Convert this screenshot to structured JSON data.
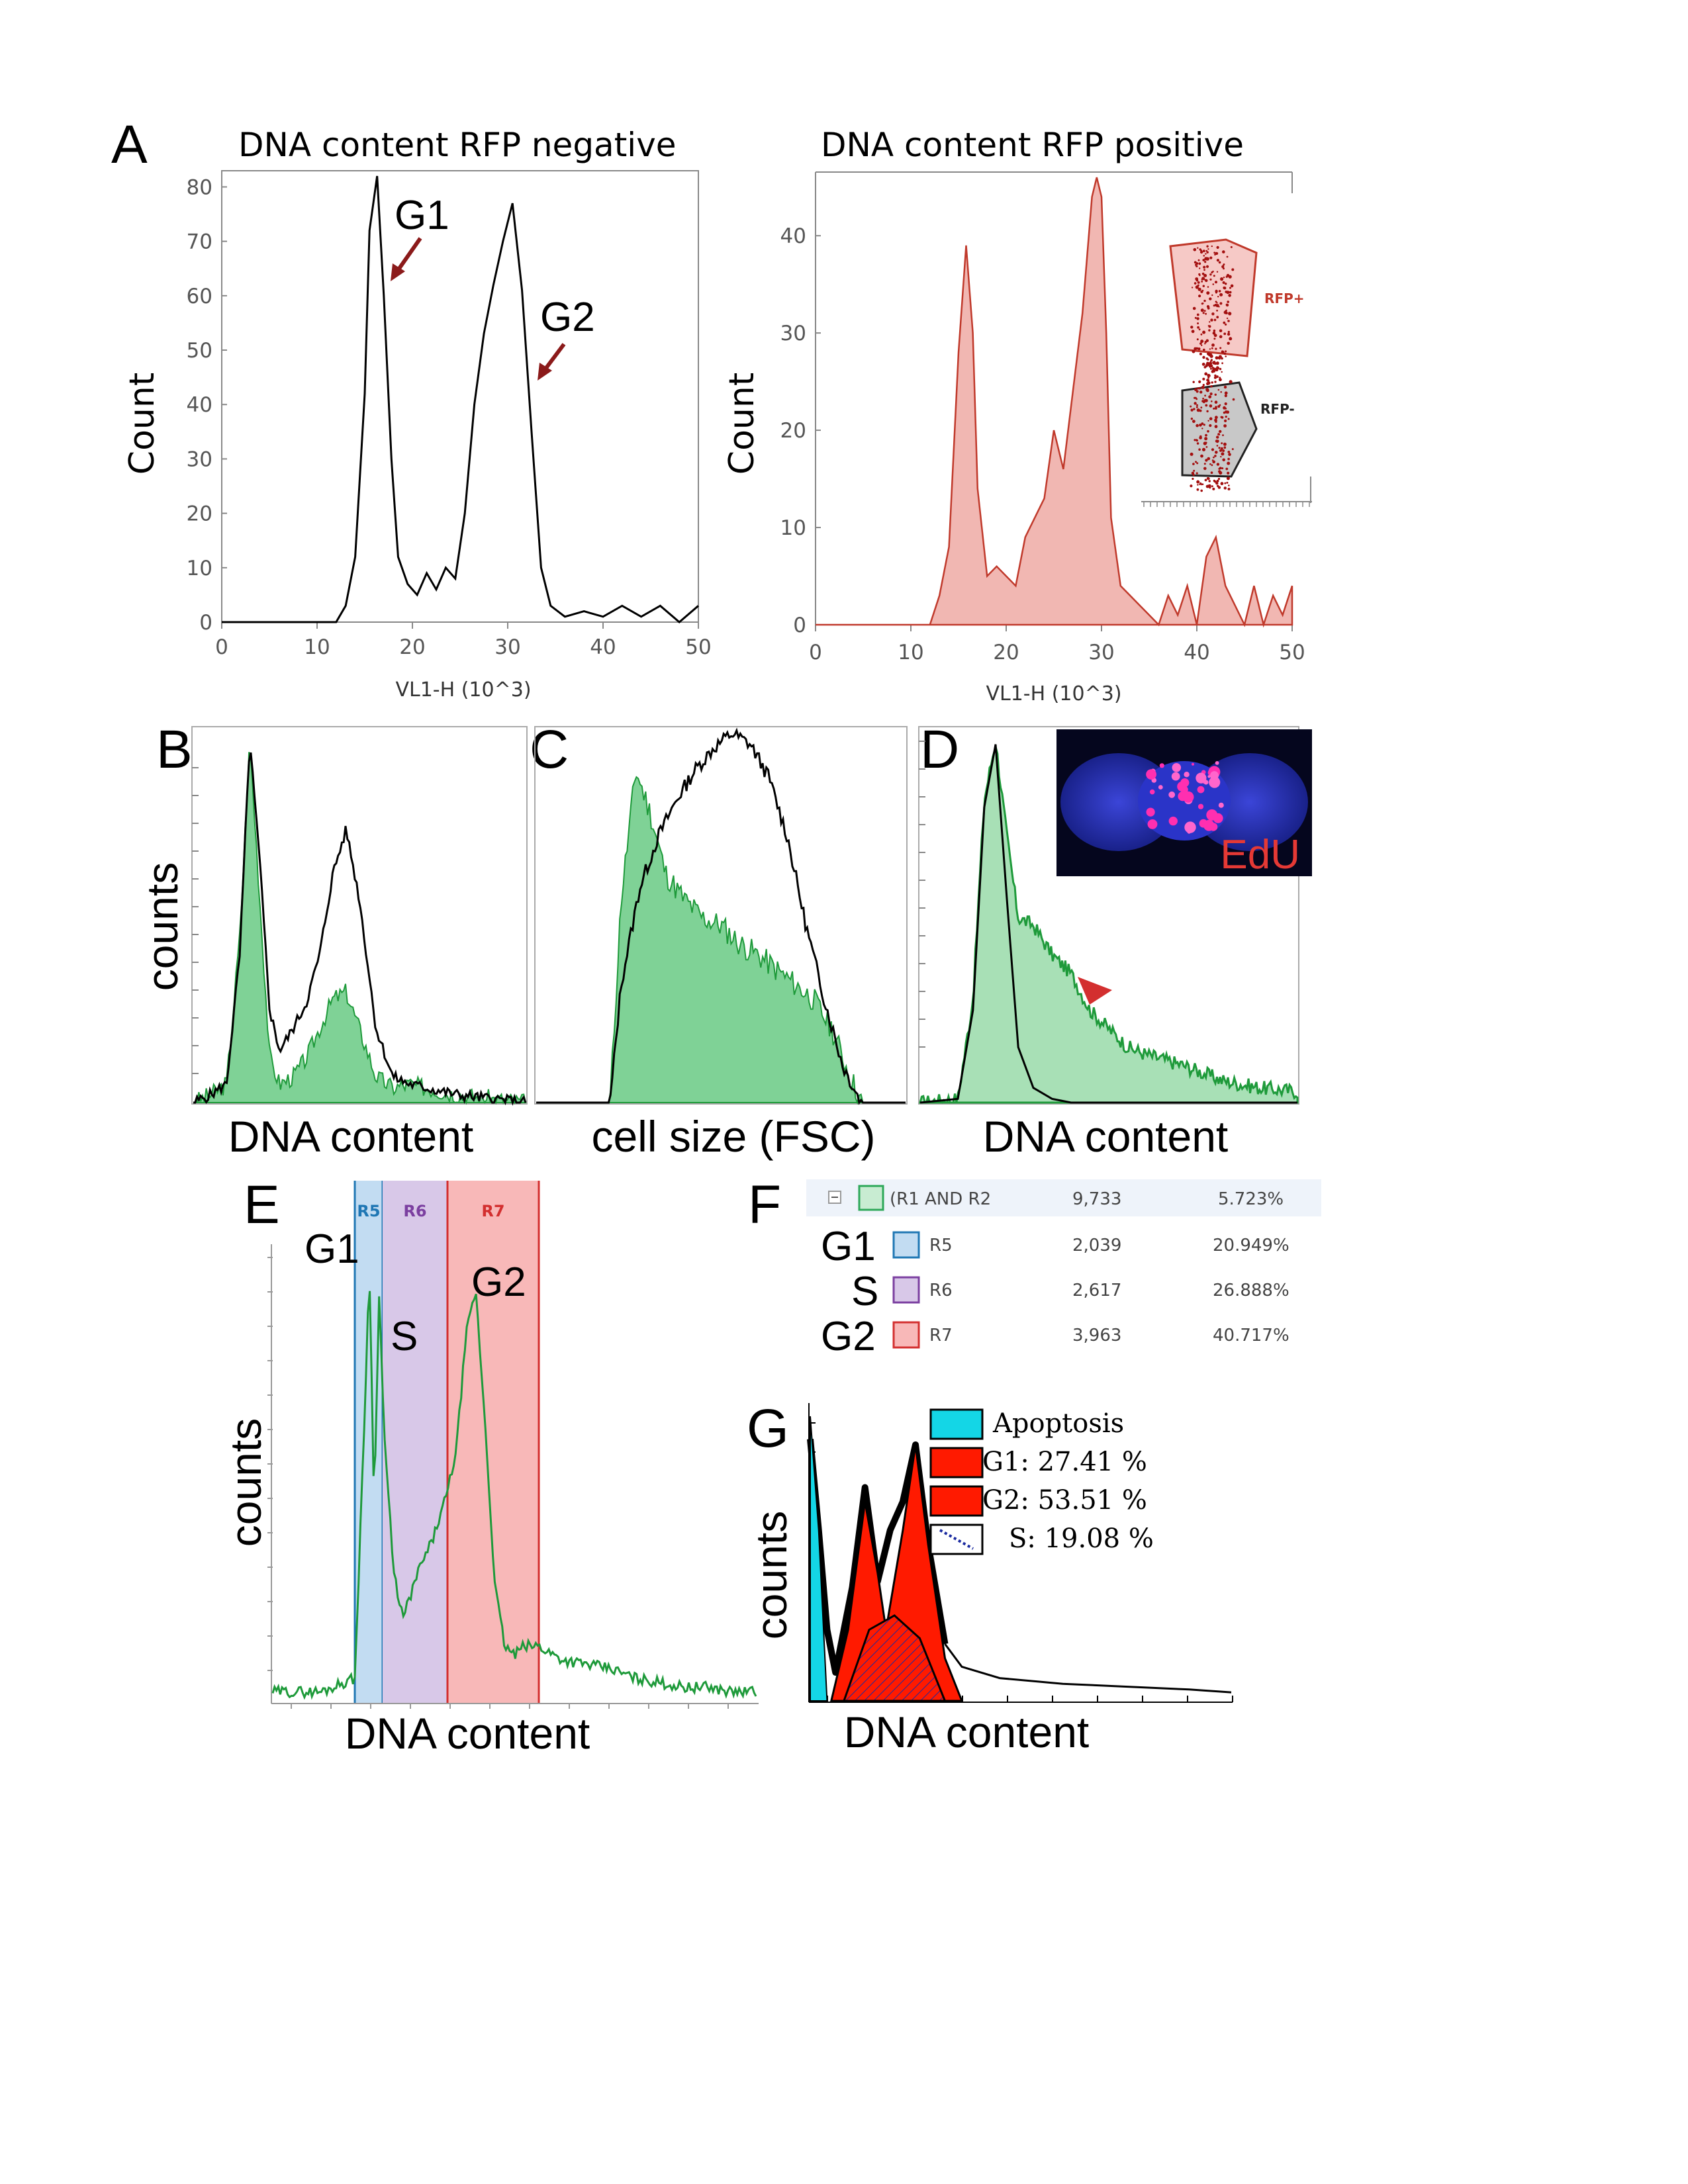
{
  "colors": {
    "green": "#1e9a3a",
    "greenFill": "#7fd296",
    "red": "#c0392b",
    "pinkFill": "#f1b7b2",
    "arrow": "#8b1a1a",
    "cyan": "#14d6e6",
    "legRed": "#ff1a00"
  },
  "panel_letters": {
    "A": "A",
    "B": "B",
    "C": "C",
    "D": "D",
    "E": "E",
    "F": "F",
    "G": "G"
  },
  "panelA": {
    "left_title": "DNA content RFP negative",
    "right_title": "DNA content RFP positive",
    "ylabel": "Count",
    "xlabel": "VL1-H (10^3)",
    "left_yticks": [
      "0",
      "10",
      "20",
      "30",
      "40",
      "50",
      "60",
      "70",
      "80"
    ],
    "right_yticks": [
      "0",
      "10",
      "20",
      "30",
      "40"
    ],
    "xticks": [
      "0",
      "10",
      "20",
      "30",
      "40",
      "50"
    ],
    "g1_label": "G1",
    "g2_label": "G2",
    "inset_rfp_pos": "RFP+",
    "inset_rfp_neg": "RFP-"
  },
  "panelB": {
    "ylabel": "counts",
    "xlabel": "DNA content"
  },
  "panelC": {
    "xlabel": "cell size (FSC)"
  },
  "panelD": {
    "xlabel": "DNA content",
    "inset_label": "EdU"
  },
  "panelE": {
    "ylabel": "counts",
    "xlabel": "DNA content",
    "gates": [
      "R5",
      "R6",
      "R7"
    ],
    "g1": "G1",
    "s": "S",
    "g2": "G2"
  },
  "panelF": {
    "header": {
      "name": "(R1 AND R2",
      "count": "9,733",
      "percent": "5.723%"
    },
    "rows": [
      {
        "phase": "G1",
        "gate": "R5",
        "count": "2,039",
        "percent": "20.949%"
      },
      {
        "phase": "S",
        "gate": "R6",
        "count": "2,617",
        "percent": "26.888%"
      },
      {
        "phase": "G2",
        "gate": "R7",
        "count": "3,963",
        "percent": "40.717%"
      }
    ]
  },
  "panelG": {
    "ylabel": "counts",
    "xlabel": "DNA content",
    "legend": [
      "Apoptosis",
      "G1: 27.41 %",
      "G2: 53.51 %",
      "S: 19.08 %"
    ]
  },
  "chart_data": [
    {
      "type": "area",
      "panel": "A-left",
      "title": "DNA content RFP negative",
      "xlabel": "VL1-H (10^3)",
      "ylabel": "Count",
      "xlim": [
        0,
        50
      ],
      "ylim": [
        0,
        80
      ],
      "x": [
        0,
        12,
        13,
        14,
        15,
        15.5,
        16.3,
        17,
        17.8,
        18.5,
        19.5,
        20.5,
        21.5,
        22.5,
        23.5,
        24.5,
        25.5,
        26.5,
        27.5,
        28.5,
        29.5,
        30.5,
        31.5,
        32.5,
        33.5,
        34.5,
        36,
        38,
        40,
        42,
        44,
        46,
        48,
        50
      ],
      "y": [
        0,
        0,
        3,
        12,
        42,
        72,
        82,
        60,
        30,
        12,
        7,
        5,
        9,
        6,
        10,
        8,
        20,
        40,
        53,
        62,
        70,
        77,
        61,
        35,
        10,
        3,
        1,
        2,
        1,
        3,
        1,
        3,
        0,
        3
      ]
    },
    {
      "type": "area",
      "panel": "A-right",
      "title": "DNA content RFP positive",
      "xlabel": "VL1-H (10^3)",
      "ylabel": "Count",
      "xlim": [
        0,
        50
      ],
      "ylim": [
        0,
        45
      ],
      "x": [
        0,
        12,
        13,
        14,
        15,
        15.8,
        16.5,
        17,
        18,
        19,
        20,
        21,
        22,
        23,
        24,
        25,
        26,
        27,
        28,
        29,
        29.5,
        30,
        30.5,
        31,
        32,
        33,
        34,
        35,
        36,
        37,
        38,
        39,
        40,
        41,
        42,
        43,
        44,
        45,
        46,
        47,
        48,
        49,
        50
      ],
      "y": [
        0,
        0,
        3,
        8,
        28,
        39,
        30,
        14,
        5,
        6,
        5,
        4,
        9,
        11,
        13,
        20,
        16,
        24,
        32,
        44,
        46,
        44,
        30,
        11,
        4,
        3,
        2,
        1,
        0,
        3,
        1,
        4,
        0,
        7,
        9,
        4,
        2,
        0,
        4,
        0,
        3,
        1,
        4
      ]
    },
    {
      "type": "area",
      "panel": "B",
      "xlabel": "DNA content",
      "ylabel": "counts",
      "series": [
        {
          "name": "outline",
          "x": [
            0,
            0.05,
            0.1,
            0.14,
            0.17,
            0.2,
            0.23,
            0.26,
            0.3,
            0.34,
            0.38,
            0.42,
            0.46,
            0.5,
            0.55,
            0.6,
            0.65,
            0.7,
            0.8,
            0.9,
            1.0
          ],
          "y": [
            0,
            0.02,
            0.05,
            0.4,
            0.98,
            0.65,
            0.25,
            0.14,
            0.2,
            0.27,
            0.4,
            0.62,
            0.74,
            0.55,
            0.2,
            0.07,
            0.05,
            0.04,
            0.02,
            0.01,
            0.0
          ]
        },
        {
          "name": "green",
          "x": [
            0,
            0.05,
            0.1,
            0.14,
            0.17,
            0.2,
            0.23,
            0.26,
            0.3,
            0.34,
            0.38,
            0.42,
            0.46,
            0.5,
            0.55,
            0.6,
            0.65,
            0.7,
            0.8,
            0.9,
            1.0
          ],
          "y": [
            0,
            0.02,
            0.05,
            0.45,
            0.98,
            0.55,
            0.12,
            0.05,
            0.07,
            0.12,
            0.2,
            0.28,
            0.3,
            0.2,
            0.07,
            0.04,
            0.05,
            0.04,
            0.02,
            0.01,
            0.0
          ]
        }
      ]
    },
    {
      "type": "area",
      "panel": "C",
      "xlabel": "cell size (FSC)",
      "series": [
        {
          "name": "outline",
          "x": [
            0,
            0.2,
            0.23,
            0.28,
            0.33,
            0.38,
            0.43,
            0.48,
            0.53,
            0.58,
            0.63,
            0.68,
            0.73,
            0.78,
            0.83,
            0.88,
            1.0
          ],
          "y": [
            0,
            0,
            0.32,
            0.58,
            0.72,
            0.82,
            0.9,
            0.96,
            1.0,
            0.97,
            0.88,
            0.72,
            0.48,
            0.28,
            0.1,
            0,
            0
          ]
        },
        {
          "name": "green",
          "x": [
            0,
            0.2,
            0.23,
            0.27,
            0.31,
            0.35,
            0.4,
            0.45,
            0.5,
            0.55,
            0.6,
            0.65,
            0.7,
            0.75,
            0.8,
            0.85,
            0.88,
            1.0
          ],
          "y": [
            0,
            0,
            0.55,
            0.9,
            0.78,
            0.62,
            0.55,
            0.5,
            0.48,
            0.43,
            0.4,
            0.36,
            0.32,
            0.28,
            0.2,
            0.07,
            0,
            0
          ]
        }
      ]
    },
    {
      "type": "area",
      "panel": "D",
      "xlabel": "DNA content",
      "series": [
        {
          "name": "outline",
          "x": [
            0,
            0.1,
            0.14,
            0.17,
            0.2,
            0.23,
            0.26,
            0.3,
            0.35,
            0.4,
            0.5,
            1.0
          ],
          "y": [
            0,
            0.01,
            0.25,
            0.8,
            0.97,
            0.55,
            0.15,
            0.04,
            0.01,
            0.0,
            0.0,
            0.0
          ]
        },
        {
          "name": "green",
          "x": [
            0,
            0.1,
            0.14,
            0.17,
            0.2,
            0.23,
            0.26,
            0.3,
            0.35,
            0.4,
            0.45,
            0.5,
            0.55,
            0.6,
            0.7,
            0.8,
            0.9,
            1.0
          ],
          "y": [
            0,
            0.01,
            0.28,
            0.82,
            0.98,
            0.72,
            0.5,
            0.48,
            0.4,
            0.35,
            0.25,
            0.2,
            0.15,
            0.13,
            0.1,
            0.06,
            0.04,
            0.03
          ]
        }
      ]
    },
    {
      "type": "line",
      "panel": "E",
      "xlabel": "DNA content",
      "ylabel": "counts",
      "x": [
        0,
        0.1,
        0.17,
        0.19,
        0.2,
        0.21,
        0.22,
        0.23,
        0.25,
        0.27,
        0.3,
        0.33,
        0.36,
        0.38,
        0.4,
        0.42,
        0.44,
        0.46,
        0.48,
        0.5,
        0.52,
        0.55,
        0.6,
        0.65,
        0.7,
        0.75,
        0.8,
        0.85,
        0.9,
        0.95,
        1.0
      ],
      "y": [
        0.02,
        0.02,
        0.05,
        0.62,
        0.95,
        0.42,
        0.9,
        0.6,
        0.28,
        0.18,
        0.28,
        0.35,
        0.45,
        0.55,
        0.8,
        0.9,
        0.6,
        0.25,
        0.12,
        0.1,
        0.12,
        0.12,
        0.09,
        0.08,
        0.07,
        0.05,
        0.04,
        0.03,
        0.03,
        0.02,
        0.02
      ]
    },
    {
      "type": "area",
      "panel": "G",
      "xlabel": "DNA content",
      "ylabel": "counts",
      "series": [
        {
          "name": "Apoptosis",
          "x": [
            0,
            0.02,
            0.04
          ],
          "y": [
            1,
            0.6,
            0
          ]
        },
        {
          "name": "G1: 27.41 %",
          "x": [
            0.05,
            0.09,
            0.13,
            0.16,
            0.19,
            0.22
          ],
          "y": [
            0,
            0.25,
            0.7,
            0.45,
            0.15,
            0
          ]
        },
        {
          "name": "G2: 53.51 %",
          "x": [
            0.14,
            0.18,
            0.22,
            0.25,
            0.28,
            0.32,
            0.36
          ],
          "y": [
            0,
            0.25,
            0.6,
            0.9,
            0.55,
            0.15,
            0
          ]
        },
        {
          "name": "S: 19.08 %",
          "x": [
            0.08,
            0.14,
            0.2,
            0.26,
            0.32
          ],
          "y": [
            0,
            0.25,
            0.3,
            0.22,
            0
          ]
        },
        {
          "name": "total",
          "x": [
            0,
            0.02,
            0.04,
            0.06,
            0.1,
            0.13,
            0.16,
            0.19,
            0.22,
            0.25,
            0.28,
            0.32,
            0.36,
            0.45,
            0.6,
            0.75,
            0.9,
            1.0
          ],
          "y": [
            0.92,
            0.6,
            0.25,
            0.1,
            0.4,
            0.75,
            0.42,
            0.6,
            0.7,
            0.9,
            0.55,
            0.2,
            0.12,
            0.08,
            0.06,
            0.05,
            0.04,
            0.03
          ]
        }
      ]
    }
  ]
}
